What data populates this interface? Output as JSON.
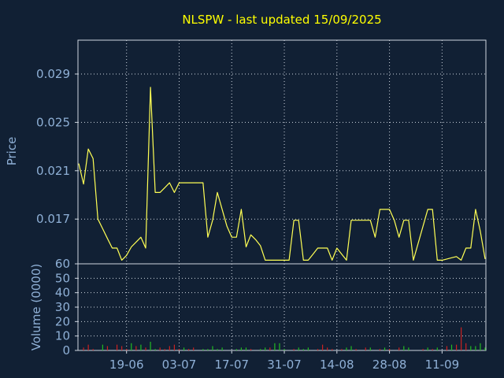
{
  "chart_data": [
    {
      "type": "line",
      "title": "NLSPW - last updated 15/09/2025",
      "ylabel": "Price",
      "ylim": [
        0.0133,
        0.0318
      ],
      "yticks": [
        "0.029",
        "0.025",
        "0.021",
        "0.017"
      ],
      "ytick_values": [
        0.029,
        0.025,
        0.021,
        0.017
      ],
      "grid": true,
      "colors": {
        "background": "#112034",
        "line": "#ffff55",
        "axis_text": "#8fb0d6",
        "title": "#ffff00",
        "grid": "#cfd6e0"
      },
      "series": [
        {
          "values": [
            0.0216,
            0.0199,
            0.0228,
            0.022,
            0.017,
            0.0162,
            0.0154,
            0.0146,
            0.0146,
            0.0136,
            0.014,
            0.0147,
            0.0151,
            0.0155,
            0.0146,
            0.0279,
            0.0192,
            0.0192,
            0.0196,
            0.02,
            0.0192,
            0.02,
            0.02,
            0.02,
            0.02,
            0.02,
            0.02,
            0.0155,
            0.0169,
            0.0192,
            0.0178,
            0.0164,
            0.0155,
            0.0155,
            0.0178,
            0.0147,
            0.0157,
            0.0153,
            0.0148,
            0.0136,
            0.0136,
            0.0136,
            0.0136,
            0.0136,
            0.0136,
            0.0169,
            0.0169,
            0.0136,
            0.0136,
            0.0141,
            0.0146,
            0.0146,
            0.0146,
            0.0136,
            0.0146,
            0.0141,
            0.0136,
            0.0169,
            0.0169,
            0.0169,
            0.0169,
            0.0169,
            0.0155,
            0.0178,
            0.0178,
            0.0178,
            0.0169,
            0.0155,
            0.0169,
            0.0169,
            0.0136,
            0.015,
            0.0164,
            0.0178,
            0.0178,
            0.0136,
            0.0136,
            0.0137,
            0.0138,
            0.0139,
            0.0136,
            0.0146,
            0.0146,
            0.0178,
            0.016,
            0.0137
          ]
        }
      ]
    },
    {
      "type": "bar",
      "ylabel": "Volume (0000)",
      "ylim": [
        0,
        60
      ],
      "yticks": [
        "60",
        "50",
        "40",
        "30",
        "20",
        "10",
        "0"
      ],
      "ytick_values": [
        60,
        50,
        40,
        30,
        20,
        10,
        0
      ],
      "xticks": [
        "19-06",
        "03-07",
        "17-07",
        "31-07",
        "14-08",
        "28-08",
        "11-09"
      ],
      "xtick_positions": [
        10,
        21,
        32,
        43,
        54,
        65,
        76
      ],
      "grid": true,
      "colors": {
        "up": "#22bb22",
        "down": "#cc2222"
      },
      "values": [
        [
          1,
          2,
          "down"
        ],
        [
          2,
          4,
          "down"
        ],
        [
          3,
          1,
          "down"
        ],
        [
          5,
          4,
          "up"
        ],
        [
          6,
          3,
          "down"
        ],
        [
          8,
          4,
          "down"
        ],
        [
          9,
          3,
          "down"
        ],
        [
          10,
          1,
          "down"
        ],
        [
          11,
          5,
          "up"
        ],
        [
          12,
          3,
          "down"
        ],
        [
          13,
          4,
          "up"
        ],
        [
          14,
          2,
          "down"
        ],
        [
          15,
          6,
          "up"
        ],
        [
          16,
          1,
          "up"
        ],
        [
          17,
          2,
          "down"
        ],
        [
          18,
          1,
          "down"
        ],
        [
          19,
          3,
          "down"
        ],
        [
          20,
          4,
          "down"
        ],
        [
          21,
          1,
          "down"
        ],
        [
          22,
          2,
          "up"
        ],
        [
          23,
          1,
          "down"
        ],
        [
          24,
          2,
          "down"
        ],
        [
          26,
          1,
          "up"
        ],
        [
          27,
          1,
          "up"
        ],
        [
          28,
          3,
          "up"
        ],
        [
          29,
          1,
          "up"
        ],
        [
          30,
          2,
          "up"
        ],
        [
          33,
          1,
          "up"
        ],
        [
          34,
          2,
          "up"
        ],
        [
          35,
          2,
          "up"
        ],
        [
          36,
          1,
          "down"
        ],
        [
          38,
          1,
          "up"
        ],
        [
          39,
          2,
          "up"
        ],
        [
          40,
          2,
          "down"
        ],
        [
          41,
          5,
          "up"
        ],
        [
          42,
          5,
          "up"
        ],
        [
          43,
          1,
          "up"
        ],
        [
          45,
          1,
          "down"
        ],
        [
          46,
          2,
          "up"
        ],
        [
          47,
          1,
          "up"
        ],
        [
          48,
          2,
          "up"
        ],
        [
          50,
          1,
          "down"
        ],
        [
          51,
          4,
          "down"
        ],
        [
          52,
          2,
          "down"
        ],
        [
          53,
          1,
          "down"
        ],
        [
          55,
          1,
          "down"
        ],
        [
          56,
          2,
          "up"
        ],
        [
          57,
          3,
          "up"
        ],
        [
          58,
          1,
          "down"
        ],
        [
          60,
          2,
          "down"
        ],
        [
          61,
          2,
          "up"
        ],
        [
          63,
          1,
          "down"
        ],
        [
          64,
          2,
          "up"
        ],
        [
          65,
          1,
          "down"
        ],
        [
          67,
          2,
          "down"
        ],
        [
          68,
          3,
          "up"
        ],
        [
          69,
          2,
          "up"
        ],
        [
          72,
          1,
          "down"
        ],
        [
          73,
          2,
          "up"
        ],
        [
          74,
          1,
          "down"
        ],
        [
          75,
          2,
          "up"
        ],
        [
          77,
          3,
          "down"
        ],
        [
          78,
          4,
          "up"
        ],
        [
          79,
          4,
          "down"
        ],
        [
          80,
          16,
          "down"
        ],
        [
          81,
          5,
          "down"
        ],
        [
          82,
          3,
          "up"
        ],
        [
          83,
          3,
          "up"
        ],
        [
          84,
          5,
          "up"
        ],
        [
          85,
          2,
          "up"
        ]
      ]
    }
  ]
}
